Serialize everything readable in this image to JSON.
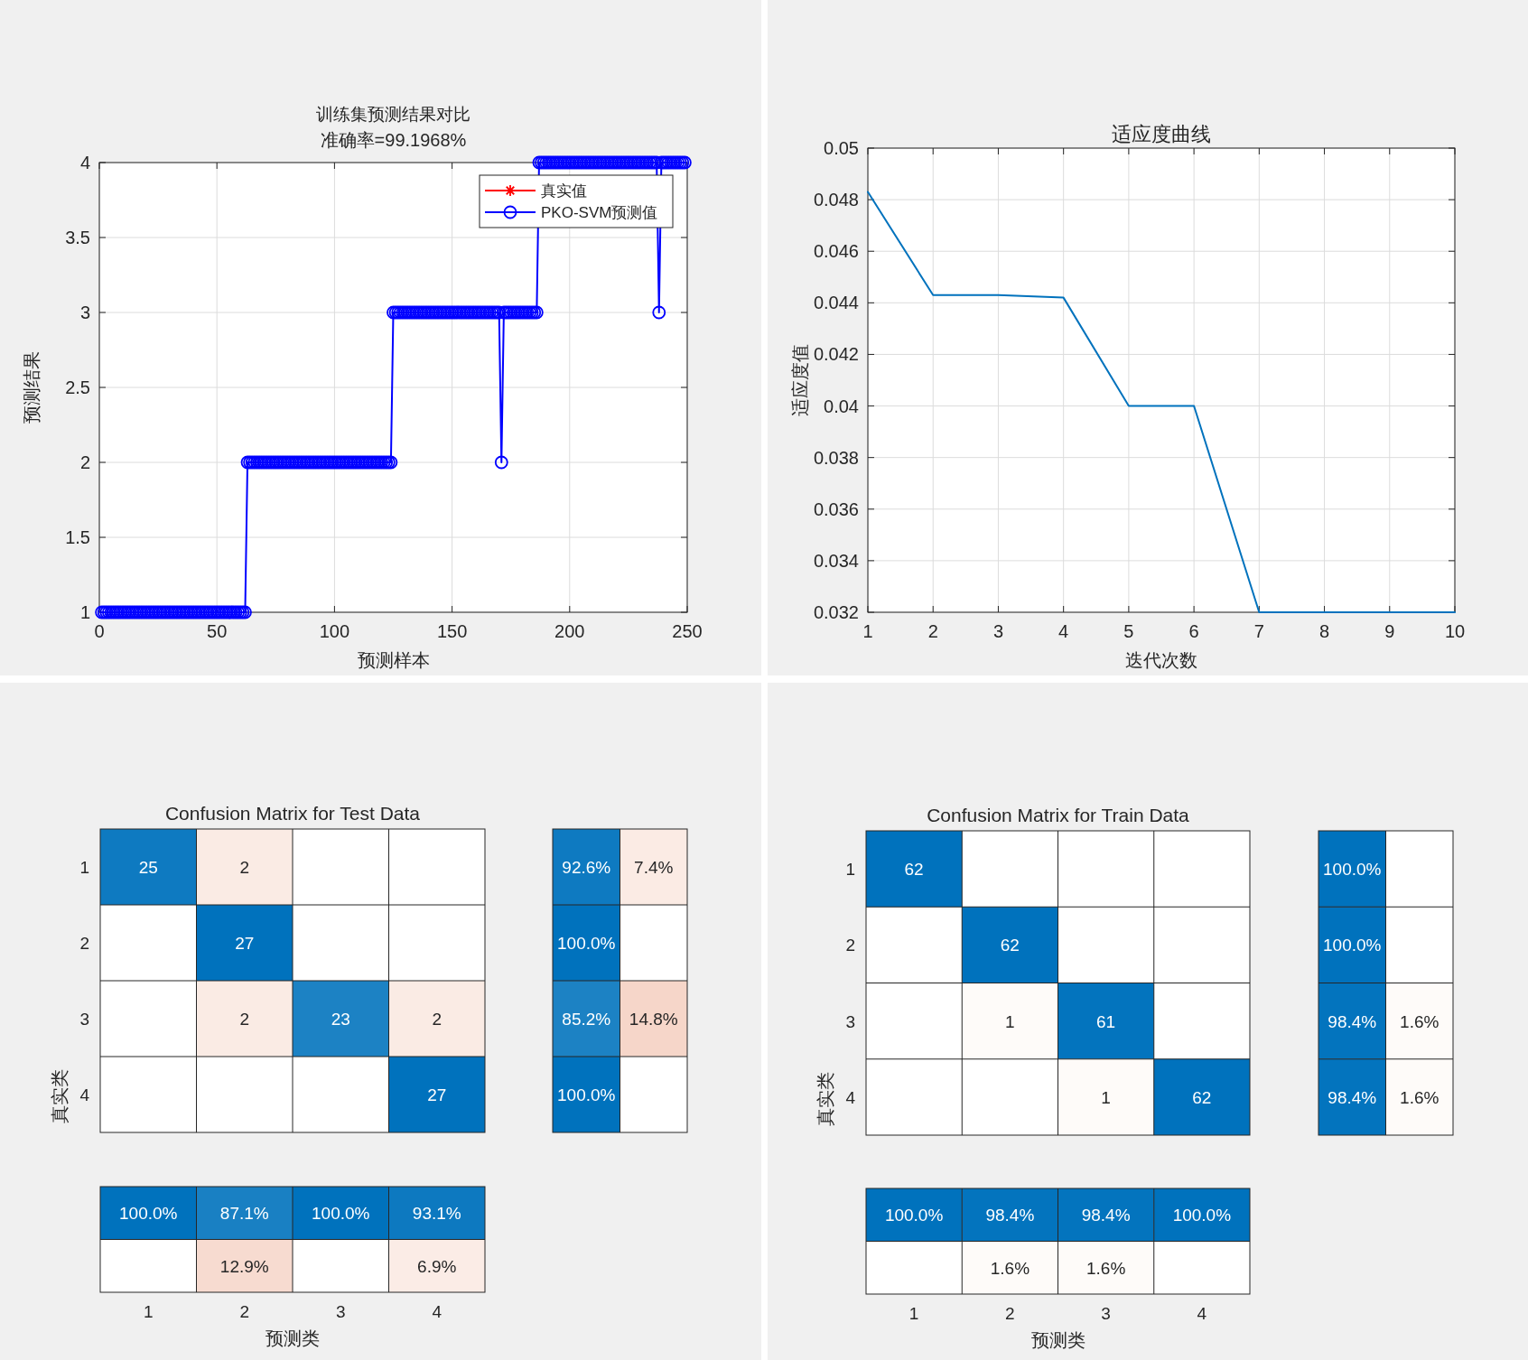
{
  "chart_data": [
    {
      "type": "line",
      "title": "训练集预测结果对比",
      "subtitle": "准确率=99.1968%",
      "xlabel": "预测样本",
      "ylabel": "预测结果",
      "xlim": [
        0,
        250
      ],
      "ylim": [
        1,
        4
      ],
      "xticks": [
        0,
        50,
        100,
        150,
        200,
        250
      ],
      "yticks": [
        1,
        1.5,
        2,
        2.5,
        3,
        3.5,
        4
      ],
      "grid": true,
      "legend": "top right",
      "series": [
        {
          "name": "真实值",
          "color": "#ff0000",
          "marker": "star"
        },
        {
          "name": "PKO-SVM预测值",
          "color": "#0000ff",
          "marker": "circle",
          "x": [
            1,
            2,
            3,
            4,
            5,
            6,
            7,
            8,
            9,
            10,
            11,
            12,
            13,
            14,
            15,
            16,
            17,
            18,
            19,
            20,
            21,
            22,
            23,
            24,
            25,
            26,
            27,
            28,
            29,
            30,
            31,
            32,
            33,
            34,
            35,
            36,
            37,
            38,
            39,
            40,
            41,
            42,
            43,
            44,
            45,
            46,
            47,
            48,
            49,
            50,
            51,
            52,
            53,
            54,
            55,
            56,
            57,
            58,
            59,
            60,
            61,
            62,
            63,
            64,
            65,
            66,
            67,
            68,
            69,
            70,
            71,
            72,
            73,
            74,
            75,
            76,
            77,
            78,
            79,
            80,
            81,
            82,
            83,
            84,
            85,
            86,
            87,
            88,
            89,
            90,
            91,
            92,
            93,
            94,
            95,
            96,
            97,
            98,
            99,
            100,
            101,
            102,
            103,
            104,
            105,
            106,
            107,
            108,
            109,
            110,
            111,
            112,
            113,
            114,
            115,
            116,
            117,
            118,
            119,
            120,
            121,
            122,
            123,
            124,
            125,
            126,
            127,
            128,
            129,
            130,
            131,
            132,
            133,
            134,
            135,
            136,
            137,
            138,
            139,
            140,
            141,
            142,
            143,
            144,
            145,
            146,
            147,
            148,
            149,
            150,
            151,
            152,
            153,
            154,
            155,
            156,
            157,
            158,
            159,
            160,
            161,
            162,
            163,
            164,
            165,
            166,
            167,
            168,
            169,
            170,
            171,
            172,
            173,
            174,
            175,
            176,
            177,
            178,
            179,
            180,
            181,
            182,
            183,
            184,
            185,
            186,
            187,
            188,
            189,
            190,
            191,
            192,
            193,
            194,
            195,
            196,
            197,
            198,
            199,
            200,
            201,
            202,
            203,
            204,
            205,
            206,
            207,
            208,
            209,
            210,
            211,
            212,
            213,
            214,
            215,
            216,
            217,
            218,
            219,
            220,
            221,
            222,
            223,
            224,
            225,
            226,
            227,
            228,
            229,
            230,
            231,
            232,
            233,
            234,
            235,
            236,
            237,
            238,
            239,
            240,
            241,
            242,
            243,
            244,
            245,
            246,
            247,
            248,
            249
          ],
          "values": [
            1,
            1,
            1,
            1,
            1,
            1,
            1,
            1,
            1,
            1,
            1,
            1,
            1,
            1,
            1,
            1,
            1,
            1,
            1,
            1,
            1,
            1,
            1,
            1,
            1,
            1,
            1,
            1,
            1,
            1,
            1,
            1,
            1,
            1,
            1,
            1,
            1,
            1,
            1,
            1,
            1,
            1,
            1,
            1,
            1,
            1,
            1,
            1,
            1,
            1,
            1,
            1,
            1,
            1,
            1,
            1,
            1,
            1,
            1,
            1,
            1,
            1,
            2,
            2,
            2,
            2,
            2,
            2,
            2,
            2,
            2,
            2,
            2,
            2,
            2,
            2,
            2,
            2,
            2,
            2,
            2,
            2,
            2,
            2,
            2,
            2,
            2,
            2,
            2,
            2,
            2,
            2,
            2,
            2,
            2,
            2,
            2,
            2,
            2,
            2,
            2,
            2,
            2,
            2,
            2,
            2,
            2,
            2,
            2,
            2,
            2,
            2,
            2,
            2,
            2,
            2,
            2,
            2,
            2,
            2,
            2,
            2,
            2,
            2,
            3,
            3,
            3,
            3,
            3,
            3,
            3,
            3,
            3,
            3,
            3,
            3,
            3,
            3,
            3,
            3,
            3,
            3,
            3,
            3,
            3,
            3,
            3,
            3,
            3,
            3,
            3,
            3,
            3,
            3,
            3,
            3,
            3,
            3,
            3,
            3,
            3,
            3,
            3,
            3,
            3,
            3,
            3,
            3,
            3,
            3,
            2,
            3,
            3,
            3,
            3,
            3,
            3,
            3,
            3,
            3,
            3,
            3,
            3,
            3,
            3,
            3,
            4,
            4,
            4,
            4,
            4,
            4,
            4,
            4,
            4,
            4,
            4,
            4,
            4,
            4,
            4,
            4,
            4,
            4,
            4,
            4,
            4,
            4,
            4,
            4,
            4,
            4,
            4,
            4,
            4,
            4,
            4,
            4,
            4,
            4,
            4,
            4,
            4,
            4,
            4,
            4,
            4,
            4,
            4,
            4,
            4,
            4,
            4,
            4,
            4,
            4,
            4,
            3,
            4,
            4,
            4,
            4,
            4,
            4,
            4,
            4,
            4,
            4,
            4
          ]
        }
      ]
    },
    {
      "type": "line",
      "title": "适应度曲线",
      "xlabel": "迭代次数",
      "ylabel": "适应度值",
      "xlim": [
        1,
        10
      ],
      "ylim": [
        0.032,
        0.05
      ],
      "xticks": [
        1,
        2,
        3,
        4,
        5,
        6,
        7,
        8,
        9,
        10
      ],
      "yticks": [
        0.032,
        0.034,
        0.036,
        0.038,
        0.04,
        0.042,
        0.044,
        0.046,
        0.048,
        0.05
      ],
      "grid": true,
      "series": [
        {
          "color": "#0072bd",
          "x": [
            1,
            2,
            3,
            4,
            5,
            6,
            7,
            8,
            9,
            10
          ],
          "values": [
            0.0483,
            0.0443,
            0.0443,
            0.0442,
            0.04,
            0.04,
            0.032,
            0.032,
            0.032,
            0.032
          ]
        }
      ]
    },
    {
      "type": "heatmap",
      "title": "Confusion Matrix for Test Data",
      "ylabel": "真实类",
      "categories": [
        null,
        null,
        null,
        null
      ],
      "y_categories": [
        "1",
        "2",
        "3",
        "4"
      ],
      "tick_labels": "y",
      "data_labels": true,
      "cells": [
        [
          25,
          2,
          null,
          null
        ],
        [
          null,
          27,
          null,
          null
        ],
        [
          null,
          2,
          23,
          2
        ],
        [
          null,
          null,
          null,
          27
        ]
      ]
    },
    {
      "type": "heatmap",
      "categories": [
        null,
        null
      ],
      "y_categories": [
        null,
        null,
        null,
        null
      ],
      "tick_labels": false,
      "cells": [
        [
          92.6,
          7.4
        ],
        [
          100,
          null
        ],
        [
          85.2,
          14.8
        ],
        [
          100,
          null
        ]
      ],
      "cell_labels": [
        [
          "92.6%",
          "7.4%"
        ],
        [
          "100.0%",
          null
        ],
        [
          "85.2%",
          "14.8%"
        ],
        [
          "100.0%",
          null
        ]
      ]
    },
    {
      "type": "heatmap",
      "xlabel": "预测类",
      "categories": [
        "1",
        "2",
        "3",
        "4"
      ],
      "y_categories": [
        null,
        null
      ],
      "tick_labels": "x",
      "cells": [
        [
          100,
          87.1,
          100,
          93.1
        ],
        [
          null,
          12.9,
          null,
          6.9
        ]
      ],
      "cell_labels": [
        [
          "100.0%",
          "87.1%",
          "100.0%",
          "93.1%"
        ],
        [
          null,
          "12.9%",
          null,
          "6.9%"
        ]
      ]
    },
    {
      "type": "heatmap",
      "title": "Confusion Matrix for Train Data",
      "ylabel": "真实类",
      "categories": [
        null,
        null,
        null,
        null
      ],
      "y_categories": [
        "1",
        "2",
        "3",
        "4"
      ],
      "tick_labels": "y",
      "data_labels": true,
      "cells": [
        [
          62,
          null,
          null,
          null
        ],
        [
          null,
          62,
          null,
          null
        ],
        [
          null,
          1,
          61,
          null
        ],
        [
          null,
          null,
          1,
          62
        ]
      ]
    },
    {
      "type": "heatmap",
      "categories": [
        null,
        null
      ],
      "y_categories": [
        null,
        null,
        null,
        null
      ],
      "tick_labels": false,
      "cells": [
        [
          100,
          null
        ],
        [
          100,
          null
        ],
        [
          98.4,
          1.6
        ],
        [
          98.4,
          1.6
        ]
      ],
      "cell_labels": [
        [
          "100.0%",
          null
        ],
        [
          "100.0%",
          null
        ],
        [
          "98.4%",
          "1.6%"
        ],
        [
          "98.4%",
          "1.6%"
        ]
      ]
    },
    {
      "type": "heatmap",
      "xlabel": "预测类",
      "categories": [
        "1",
        "2",
        "3",
        "4"
      ],
      "y_categories": [
        null,
        null
      ],
      "tick_labels": "x",
      "cells": [
        [
          100,
          98.4,
          98.4,
          100
        ],
        [
          null,
          1.6,
          1.6,
          null
        ]
      ],
      "cell_labels": [
        [
          "100.0%",
          "98.4%",
          "98.4%",
          "100.0%"
        ],
        [
          null,
          "1.6%",
          "1.6%",
          null
        ]
      ]
    }
  ]
}
